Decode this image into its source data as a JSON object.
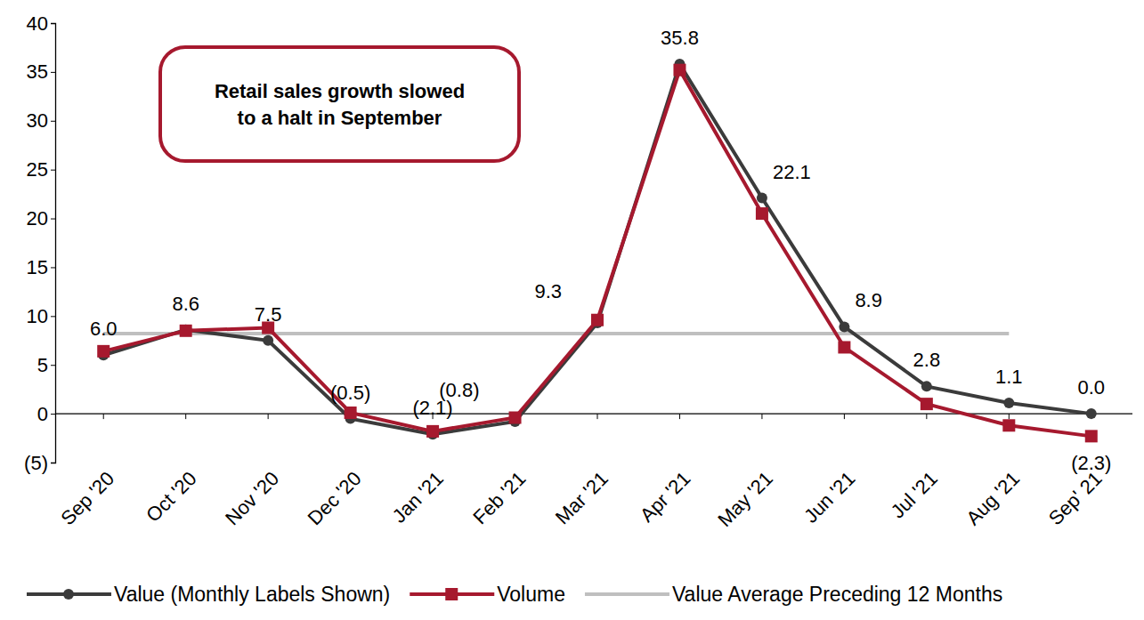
{
  "chart_data": {
    "type": "line",
    "categories": [
      "Sep '20",
      "Oct '20",
      "Nov '20",
      "Dec '20",
      "Jan '21",
      "Feb '21",
      "Mar '21",
      "Apr '21",
      "May '21",
      "Jun '21",
      "Jul '21",
      "Aug '21",
      "Sep' 21"
    ],
    "series": [
      {
        "name": "Value (Monthly Labels Shown)",
        "color": "#3b3b3b",
        "marker": "circle",
        "line_style": "solid",
        "data_labels": true,
        "values": [
          6.0,
          8.6,
          7.5,
          -0.5,
          -2.1,
          -0.8,
          9.3,
          35.8,
          22.1,
          8.9,
          2.8,
          1.1,
          0.0
        ],
        "value_labels": [
          "6.0",
          "8.6",
          "7.5",
          "(0.5)",
          "(2.1)",
          "(0.8)",
          "9.3",
          "35.8",
          "22.1",
          "8.9",
          "2.8",
          "1.1",
          "0.0"
        ]
      },
      {
        "name": "Volume",
        "color": "#a6192e",
        "marker": "square",
        "line_style": "solid",
        "data_labels": true,
        "values": [
          6.4,
          8.5,
          8.8,
          0.1,
          -1.8,
          -0.4,
          9.6,
          35.2,
          20.5,
          6.8,
          1.0,
          -1.2,
          -2.3
        ],
        "value_labels": [
          null,
          null,
          null,
          null,
          null,
          null,
          null,
          null,
          null,
          null,
          null,
          null,
          "(2.3)"
        ]
      },
      {
        "name": "Value Average Preceding 12 Months",
        "color": "#bfbfbf",
        "marker": "none",
        "line_style": "solid",
        "data_labels": false,
        "values": [
          8.2,
          8.2,
          8.2,
          8.2,
          8.2,
          8.2,
          8.2,
          8.2,
          8.2,
          8.2,
          8.2,
          8.2,
          null
        ]
      }
    ],
    "ylim": [
      -5,
      40
    ],
    "yticks": [
      {
        "value": -5,
        "label": "(5)"
      },
      0,
      5,
      10,
      15,
      20,
      25,
      30,
      35,
      40
    ],
    "grid": false,
    "legend": "bottom",
    "annotations": [
      {
        "lines": [
          "Retail sales growth slowed",
          "to a halt in September"
        ]
      }
    ]
  }
}
